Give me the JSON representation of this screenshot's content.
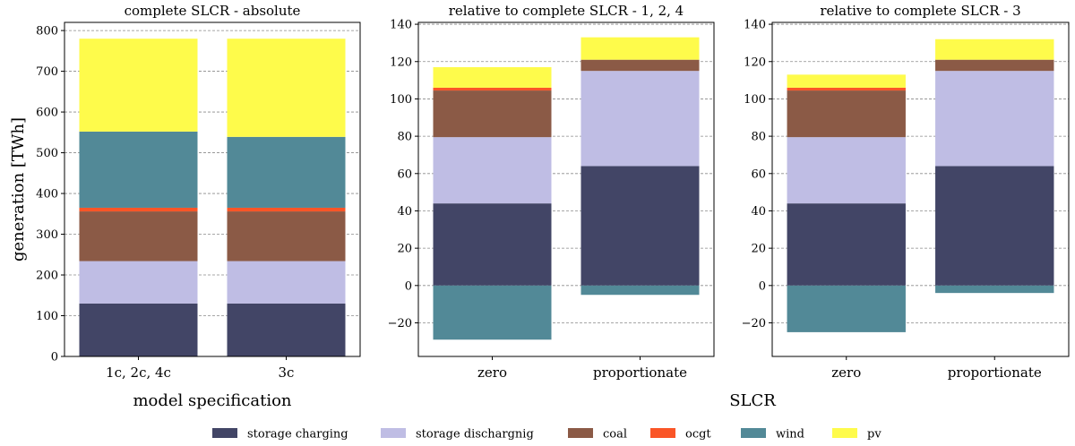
{
  "chart_data": [
    {
      "type": "bar",
      "stacked": true,
      "title": "complete SLCR - absolute",
      "xlabel": "model specification",
      "ylabel": "generation [TWh]",
      "ylim": [
        0,
        820
      ],
      "yticks": [
        0,
        100,
        200,
        300,
        400,
        500,
        600,
        700,
        800
      ],
      "grid": true,
      "categories": [
        "1c, 2c, 4c",
        "3c"
      ],
      "series": [
        {
          "name": "storage charging",
          "color": "#424566",
          "values": [
            130,
            130
          ]
        },
        {
          "name": "storage dischargnig",
          "color": "#bfbde4",
          "values": [
            104,
            104
          ]
        },
        {
          "name": "coal",
          "color": "#8b5a46",
          "values": [
            122,
            122
          ]
        },
        {
          "name": "ocgt",
          "color": "#fa5527",
          "values": [
            9,
            9
          ]
        },
        {
          "name": "wind",
          "color": "#528997",
          "values": [
            187,
            174
          ]
        },
        {
          "name": "pv",
          "color": "#fefb4b",
          "values": [
            228,
            241
          ]
        }
      ]
    },
    {
      "type": "bar",
      "stacked": true,
      "title": "relative to complete SLCR - 1, 2, 4",
      "xlabel": "",
      "ylabel": "",
      "ylim": [
        -38,
        141
      ],
      "yticks": [
        -20,
        0,
        20,
        40,
        60,
        80,
        100,
        120,
        140
      ],
      "grid": true,
      "categories": [
        "zero",
        "proportionate"
      ],
      "series": [
        {
          "name": "storage charging",
          "color": "#424566",
          "values": [
            44,
            64
          ]
        },
        {
          "name": "storage dischargnig",
          "color": "#bfbde4",
          "values": [
            35.5,
            51
          ]
        },
        {
          "name": "coal",
          "color": "#8b5a46",
          "values": [
            25,
            6
          ]
        },
        {
          "name": "ocgt",
          "color": "#fa5527",
          "values": [
            1.5,
            0
          ]
        },
        {
          "name": "wind",
          "color": "#528997",
          "values": [
            -29,
            -5
          ]
        },
        {
          "name": "pv",
          "color": "#fefb4b",
          "values": [
            11,
            12
          ]
        }
      ]
    },
    {
      "type": "bar",
      "stacked": true,
      "title": "relative to complete SLCR - 3",
      "xlabel": "",
      "ylabel": "",
      "ylim": [
        -38,
        141
      ],
      "yticks": [
        -20,
        0,
        20,
        40,
        60,
        80,
        100,
        120,
        140
      ],
      "grid": true,
      "categories": [
        "zero",
        "proportionate"
      ],
      "series": [
        {
          "name": "storage charging",
          "color": "#424566",
          "values": [
            44,
            64
          ]
        },
        {
          "name": "storage dischargnig",
          "color": "#bfbde4",
          "values": [
            35.5,
            51
          ]
        },
        {
          "name": "coal",
          "color": "#8b5a46",
          "values": [
            25,
            6
          ]
        },
        {
          "name": "ocgt",
          "color": "#fa5527",
          "values": [
            1.5,
            0
          ]
        },
        {
          "name": "wind",
          "color": "#528997",
          "values": [
            -25,
            -4
          ]
        },
        {
          "name": "pv",
          "color": "#fefb4b",
          "values": [
            7,
            11
          ]
        }
      ]
    }
  ],
  "shared_xlabel": "SLCR",
  "legend": {
    "placement": "bottom-center",
    "entries": [
      {
        "name": "storage charging",
        "color": "#424566"
      },
      {
        "name": "storage dischargnig",
        "color": "#bfbde4"
      },
      {
        "name": "coal",
        "color": "#8b5a46"
      },
      {
        "name": "ocgt",
        "color": "#fa5527"
      },
      {
        "name": "wind",
        "color": "#528997"
      },
      {
        "name": "pv",
        "color": "#fefb4b"
      }
    ]
  }
}
